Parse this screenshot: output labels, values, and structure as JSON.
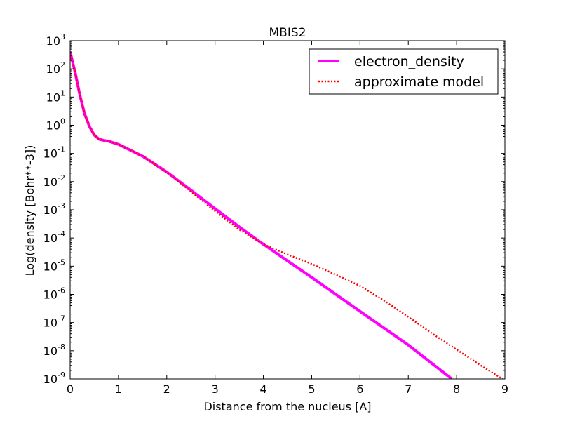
{
  "chart_data": {
    "type": "line",
    "title": "MBIS2",
    "xlabel": "Distance from the nucleus [A]",
    "ylabel": "Log(density [Bohr**-3])",
    "xlim": [
      0,
      9
    ],
    "ylim": [
      1e-09,
      1000
    ],
    "yscale": "log",
    "grid": false,
    "legend_position": "top-right",
    "x_ticks": [
      "0",
      "1",
      "2",
      "3",
      "4",
      "5",
      "6",
      "7",
      "8",
      "9"
    ],
    "y_ticks": [
      {
        "base": "10",
        "exp": "-9",
        "value": 1e-09
      },
      {
        "base": "10",
        "exp": "-8",
        "value": 1e-08
      },
      {
        "base": "10",
        "exp": "-7",
        "value": 1e-07
      },
      {
        "base": "10",
        "exp": "-6",
        "value": 1e-06
      },
      {
        "base": "10",
        "exp": "-5",
        "value": 1e-05
      },
      {
        "base": "10",
        "exp": "-4",
        "value": 0.0001
      },
      {
        "base": "10",
        "exp": "-3",
        "value": 0.001
      },
      {
        "base": "10",
        "exp": "-2",
        "value": 0.01
      },
      {
        "base": "10",
        "exp": "-1",
        "value": 0.1
      },
      {
        "base": "10",
        "exp": "0",
        "value": 1
      },
      {
        "base": "10",
        "exp": "1",
        "value": 10
      },
      {
        "base": "10",
        "exp": "2",
        "value": 100
      },
      {
        "base": "10",
        "exp": "3",
        "value": 1000
      }
    ],
    "series": [
      {
        "name": "electron_density",
        "color": "#ff00ff",
        "style": "solid",
        "x": [
          0,
          0.1,
          0.2,
          0.3,
          0.4,
          0.5,
          0.6,
          0.7,
          0.8,
          1.0,
          1.5,
          2.0,
          2.5,
          3.0,
          3.5,
          4.0,
          5.0,
          6.0,
          7.0,
          7.9
        ],
        "y": [
          400,
          80,
          12,
          2.5,
          0.9,
          0.45,
          0.32,
          0.29,
          0.27,
          0.21,
          0.08,
          0.022,
          0.005,
          0.0011,
          0.00025,
          6e-05,
          4e-06,
          2.5e-07,
          1.6e-08,
          1e-09
        ]
      },
      {
        "name": "approximate model",
        "color": "#ff0000",
        "style": "dotted",
        "x": [
          0,
          0.1,
          0.2,
          0.3,
          0.4,
          0.5,
          0.6,
          0.7,
          0.8,
          1.0,
          1.5,
          2.0,
          2.5,
          3.0,
          3.5,
          4.0,
          4.5,
          5.0,
          5.5,
          6.0,
          6.5,
          7.0,
          7.5,
          8.0,
          8.5,
          8.95
        ],
        "y": [
          400,
          80,
          12,
          2.5,
          0.9,
          0.45,
          0.32,
          0.29,
          0.27,
          0.21,
          0.08,
          0.021,
          0.0045,
          0.0009,
          0.0002,
          6e-05,
          2.6e-05,
          1.2e-05,
          5e-06,
          2e-06,
          6e-07,
          1.6e-07,
          4e-08,
          1.1e-08,
          3e-09,
          1e-09
        ]
      }
    ]
  }
}
